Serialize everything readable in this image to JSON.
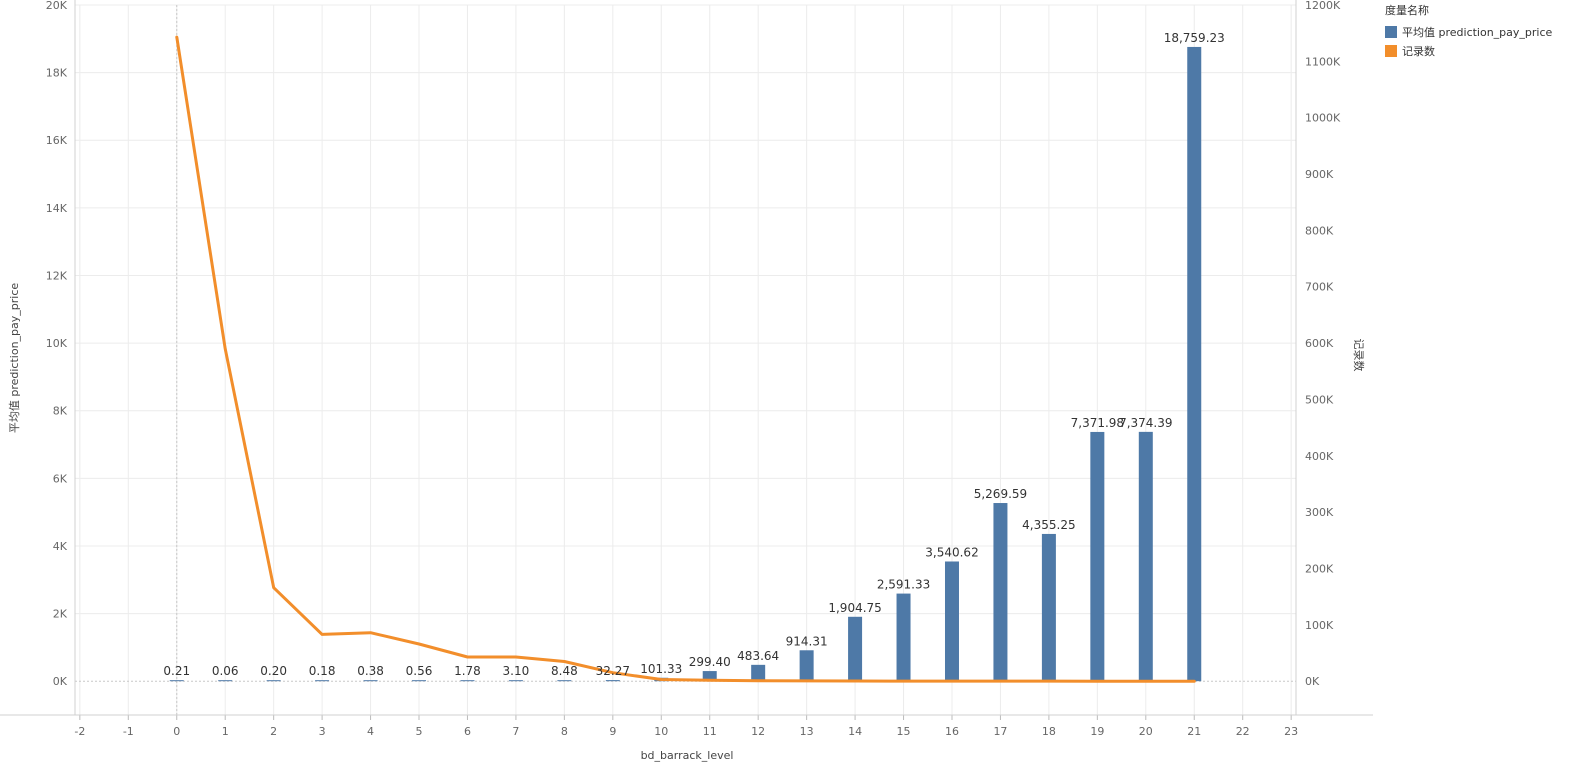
{
  "chart_data": {
    "type": "bar",
    "xlabel": "bd_barrack_level",
    "ylabel_left": "平均值 prediction_pay_price",
    "ylabel_right": "记录数",
    "x_ticks": [
      -2,
      -1,
      0,
      1,
      2,
      3,
      4,
      5,
      6,
      7,
      8,
      9,
      10,
      11,
      12,
      13,
      14,
      15,
      16,
      17,
      18,
      19,
      20,
      21,
      22,
      23
    ],
    "x_range": [
      -2.1,
      23.1
    ],
    "ylim_left": [
      -1000,
      20000
    ],
    "ylim_right": [
      -60000,
      1200000
    ],
    "y_ticks_left": [
      0,
      2000,
      4000,
      6000,
      8000,
      10000,
      12000,
      14000,
      16000,
      18000,
      20000
    ],
    "y_tick_labels_left": [
      "0K",
      "2K",
      "4K",
      "6K",
      "8K",
      "10K",
      "12K",
      "14K",
      "16K",
      "18K",
      "20K"
    ],
    "y_ticks_right": [
      0,
      100000,
      200000,
      300000,
      400000,
      500000,
      600000,
      700000,
      800000,
      900000,
      1000000,
      1100000,
      1200000
    ],
    "y_tick_labels_right": [
      "0K",
      "100K",
      "200K",
      "300K",
      "400K",
      "500K",
      "600K",
      "700K",
      "800K",
      "900K",
      "1000K",
      "1100K",
      "1200K"
    ],
    "grid": true,
    "legend": {
      "title": "度量名称",
      "placement": "top-right",
      "items": [
        {
          "label": "平均值 prediction_pay_price",
          "color": "#4e79a7"
        },
        {
          "label": "记录数",
          "color": "#f28e2b"
        }
      ]
    },
    "series": [
      {
        "name": "平均值 prediction_pay_price",
        "type": "bar",
        "axis": "left",
        "color": "#4e79a7",
        "x": [
          0,
          1,
          2,
          3,
          4,
          5,
          6,
          7,
          8,
          9,
          10,
          11,
          12,
          13,
          14,
          15,
          16,
          17,
          18,
          19,
          20,
          21
        ],
        "values": [
          0.21,
          0.06,
          0.2,
          0.18,
          0.38,
          0.56,
          1.78,
          3.1,
          8.48,
          32.27,
          101.33,
          299.4,
          483.64,
          914.31,
          1904.75,
          2591.33,
          3540.62,
          5269.59,
          4355.25,
          7371.98,
          7374.39,
          18759.23
        ],
        "labels": [
          "0.21",
          "0.06",
          "0.20",
          "0.18",
          "0.38",
          "0.56",
          "1.78",
          "3.10",
          "8.48",
          "32.27",
          "101.33",
          "299.40",
          "483.64",
          "914.31",
          "1,904.75",
          "2,591.33",
          "3,540.62",
          "5,269.59",
          "4,355.25",
          "7,371.98",
          "7,374.39",
          "18,759.23"
        ]
      },
      {
        "name": "记录数",
        "type": "line",
        "axis": "right",
        "color": "#f28e2b",
        "x": [
          0,
          1,
          2,
          3,
          4,
          5,
          6,
          7,
          8,
          9,
          10,
          11,
          12,
          13,
          14,
          15,
          16,
          17,
          18,
          19,
          20,
          21
        ],
        "values": [
          1143000,
          590000,
          166000,
          83000,
          86000,
          66000,
          43000,
          43000,
          35000,
          15000,
          3000,
          1500,
          800,
          500,
          300,
          200,
          150,
          100,
          80,
          50,
          30,
          10
        ]
      }
    ]
  }
}
